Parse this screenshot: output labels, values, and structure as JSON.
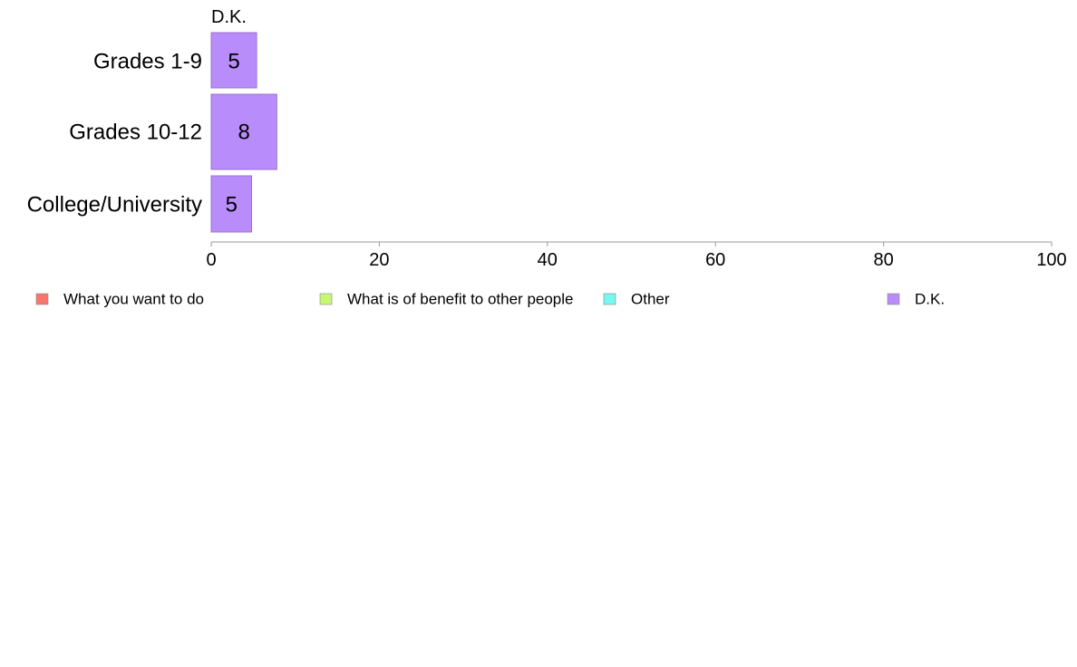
{
  "chart_data": {
    "type": "bar",
    "orientation": "horizontal",
    "stacked": true,
    "categories": [
      "Grades 1-9",
      "Grades 10-12",
      "College/University"
    ],
    "series": [
      {
        "name": "What you want to do",
        "color": "#f8766d",
        "values": [
          null,
          null,
          null
        ]
      },
      {
        "name": "What is of benefit to other people",
        "color": "#c6f871",
        "values": [
          null,
          null,
          null
        ]
      },
      {
        "name": "Other",
        "color": "#74f8f2",
        "values": [
          null,
          null,
          null
        ]
      },
      {
        "name": "D.K.",
        "color": "#b98cfb",
        "values": [
          5.4,
          7.8,
          4.8
        ],
        "labels": [
          "5",
          "8",
          "5"
        ]
      }
    ],
    "visible_series_title": "D.K.",
    "xlim": [
      0,
      100
    ],
    "xticks": [
      "0",
      "20",
      "40",
      "60",
      "80",
      "100"
    ],
    "xlabel": "",
    "ylabel": "",
    "title": "",
    "grid": false,
    "legend_position": "bottom"
  }
}
